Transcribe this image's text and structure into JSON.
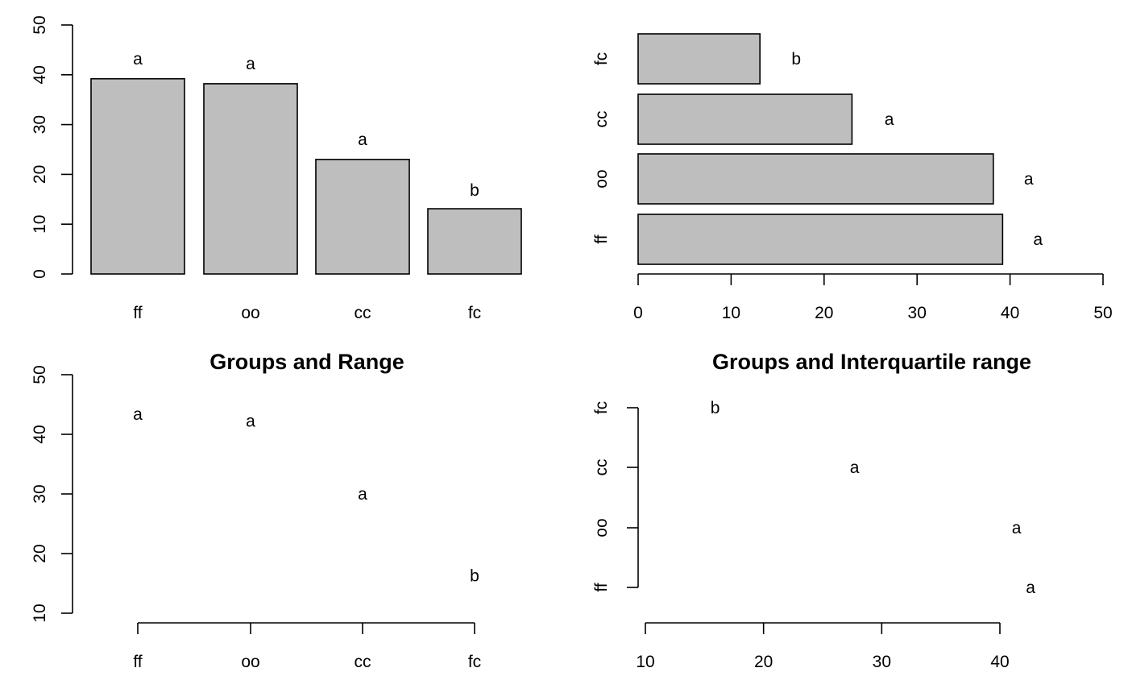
{
  "chart_data": [
    {
      "type": "bar",
      "orientation": "vertical",
      "categories": [
        "ff",
        "oo",
        "cc",
        "fc"
      ],
      "values": [
        39.2,
        38.2,
        23,
        13.1
      ],
      "labels": [
        "a",
        "a",
        "a",
        "b"
      ],
      "label_values": [
        43.2,
        42.2,
        27,
        16.8
      ],
      "title": "",
      "ylim": [
        0,
        50
      ],
      "yticks": [
        "0",
        "10",
        "20",
        "30",
        "40",
        "50"
      ],
      "bar_fill": "#bebebe"
    },
    {
      "type": "bar",
      "orientation": "horizontal",
      "categories": [
        "ff",
        "oo",
        "cc",
        "fc"
      ],
      "values": [
        39.2,
        38.2,
        23,
        13.1
      ],
      "labels": [
        "a",
        "a",
        "a",
        "b"
      ],
      "label_values": [
        43.0,
        42.0,
        27.0,
        17.0
      ],
      "title": "",
      "xlim": [
        0,
        50
      ],
      "xticks": [
        "0",
        "10",
        "20",
        "30",
        "40",
        "50"
      ],
      "bar_fill": "#bebebe"
    },
    {
      "type": "scatter",
      "orientation": "vertical",
      "title": "Groups and Range",
      "categories": [
        "ff",
        "oo",
        "cc",
        "fc"
      ],
      "labels": [
        "a",
        "a",
        "a",
        "b"
      ],
      "label_values": [
        43.4,
        42.2,
        30,
        16.3
      ],
      "ylim": [
        10,
        50
      ],
      "yticks": [
        "10",
        "20",
        "30",
        "40",
        "50"
      ]
    },
    {
      "type": "scatter",
      "orientation": "horizontal",
      "title": "Groups and Interquartile range",
      "categories": [
        "ff",
        "oo",
        "cc",
        "fc"
      ],
      "labels": [
        "a",
        "a",
        "a",
        "b"
      ],
      "label_values": [
        42.6,
        41.4,
        27.7,
        15.9
      ],
      "xlim": [
        10,
        40
      ],
      "xticks": [
        "10",
        "20",
        "30",
        "40"
      ]
    }
  ]
}
